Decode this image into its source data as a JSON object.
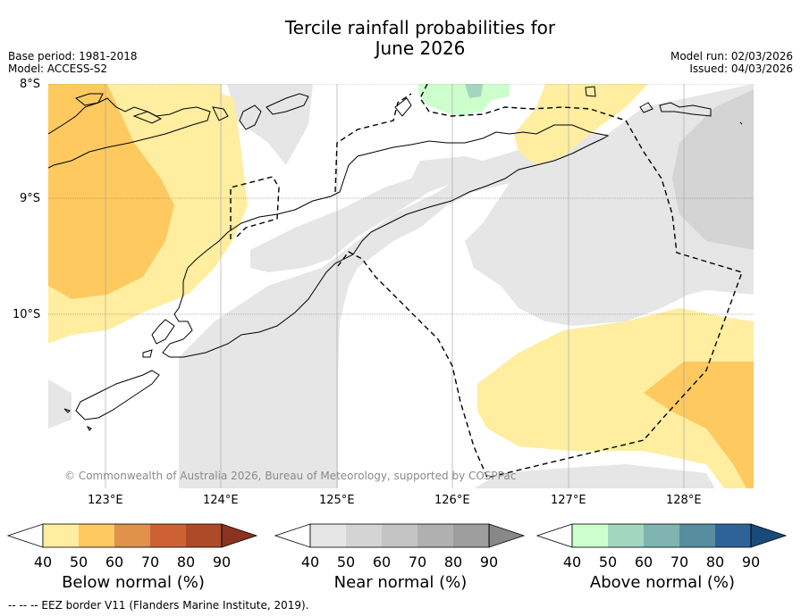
{
  "title": "Tercile rainfall probabilities for\nJune 2026",
  "base_period": "Base period: 1981-2018",
  "model": "Model: ACCESS-S2",
  "model_run": "Model run: 02/03/2026",
  "issued": "Issued: 04/03/2026",
  "lat_labels": [
    "8°S",
    "9°S",
    "10°S"
  ],
  "lon_labels": [
    "123°E",
    "124°E",
    "125°E",
    "126°E",
    "127°E",
    "128°E"
  ],
  "copyright": "© Commonwealth of Australia 2026, Bureau of Meteorology, supported by COSPPac",
  "colorbars": [
    {
      "title": "Below normal (%)",
      "ticks": [
        "40",
        "50",
        "60",
        "70",
        "80",
        "90"
      ],
      "colors": [
        "#ffeda0",
        "#fec95f",
        "#e0914a",
        "#cd6134",
        "#ad4a27",
        "#8b3220"
      ]
    },
    {
      "title": "Near normal (%)",
      "ticks": [
        "40",
        "50",
        "60",
        "70",
        "80",
        "90"
      ],
      "colors": [
        "#e6e6e6",
        "#d4d4d4",
        "#c4c4c4",
        "#b0b0b0",
        "#9e9e9e",
        "#888888"
      ]
    },
    {
      "title": "Above normal (%)",
      "ticks": [
        "40",
        "50",
        "60",
        "70",
        "80",
        "90"
      ],
      "colors": [
        "#ccffcc",
        "#a3d6bf",
        "#7fb4b0",
        "#578d9f",
        "#2e6399",
        "#1a4a7a"
      ]
    }
  ],
  "footnote": "--  --  -- EEZ border V11 (Flanders Marine Institute, 2019).",
  "colors": {
    "below_40_50": "#ffeda0",
    "below_50_60": "#fec95f",
    "near_40_50": "#e6e6e6",
    "near_50_60": "#d4d4d4",
    "above_40_50": "#ccffcc",
    "above_50_60": "#a3d6bf"
  }
}
